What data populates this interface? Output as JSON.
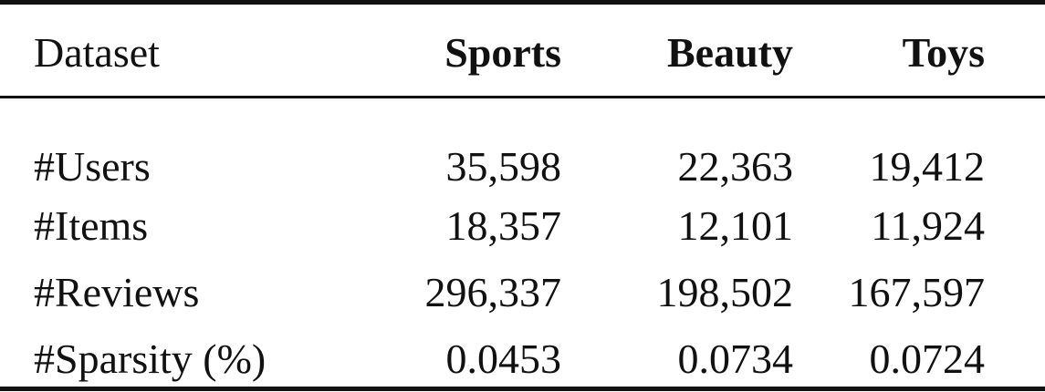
{
  "table": {
    "header": {
      "label": "Dataset",
      "columns": [
        "Sports",
        "Beauty",
        "Toys"
      ]
    },
    "rows": [
      {
        "label": "#Users",
        "values": [
          "35,598",
          "22,363",
          "19,412"
        ]
      },
      {
        "label": "#Items",
        "values": [
          "18,357",
          "12,101",
          "11,924"
        ]
      },
      {
        "label": "#Reviews",
        "values": [
          "296,337",
          "198,502",
          "167,597"
        ]
      },
      {
        "label": "#Sparsity (%)",
        "values": [
          "0.0453",
          "0.0734",
          "0.0724"
        ]
      }
    ]
  }
}
